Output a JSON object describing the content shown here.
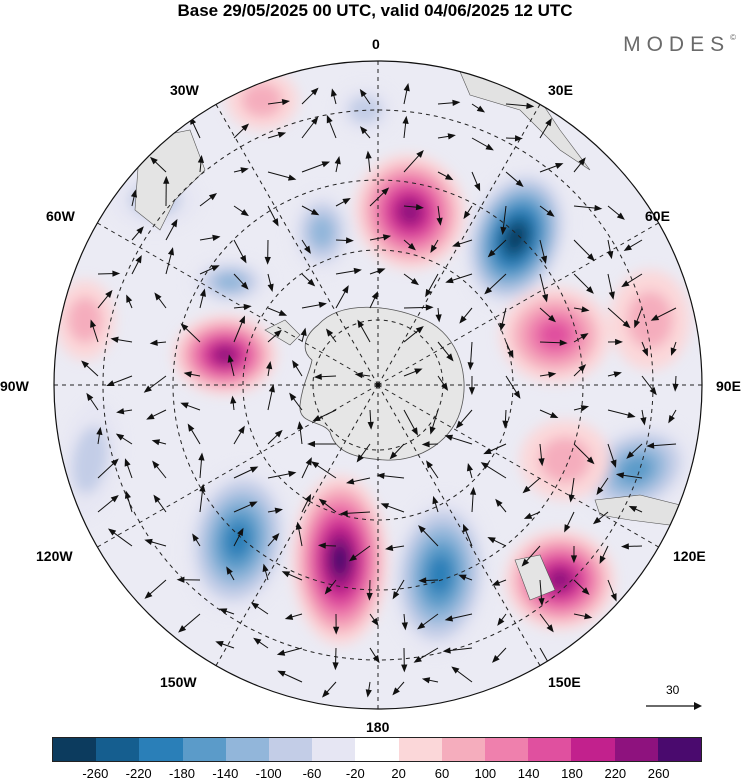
{
  "header": {
    "title": "Base 29/05/2025 00 UTC, valid 04/06/2025 12 UTC",
    "brand": "MODES",
    "brand_mark": "©"
  },
  "map": {
    "projection": "south polar stereographic",
    "longitude_labels": {
      "lon_0": "0",
      "lon_30e": "30E",
      "lon_60e": "60E",
      "lon_90e": "90E",
      "lon_120e": "120E",
      "lon_150e": "150E",
      "lon_180": "180",
      "lon_150w": "150W",
      "lon_120w": "120W",
      "lon_90w": "90W",
      "lon_60w": "60W",
      "lon_30w": "30W"
    },
    "reference_vector": "30",
    "colors": {
      "land": "#e8e8e8",
      "negative_max": "#0c3b5e",
      "positive_max": "#4a0a6e"
    }
  },
  "colorbar": {
    "ticks": [
      "-260",
      "-220",
      "-180",
      "-140",
      "-100",
      "-60",
      "-20",
      "20",
      "60",
      "100",
      "140",
      "180",
      "220",
      "260"
    ],
    "colors": [
      "#0c3b5e",
      "#155e8f",
      "#2a7fb8",
      "#5b9bc9",
      "#92b6da",
      "#c3cde7",
      "#e6e6f3",
      "#ffffff",
      "#fbd7d9",
      "#f5adbd",
      "#ef80ad",
      "#e0509f",
      "#c2218d",
      "#8e127e",
      "#4a0a6e"
    ]
  }
}
